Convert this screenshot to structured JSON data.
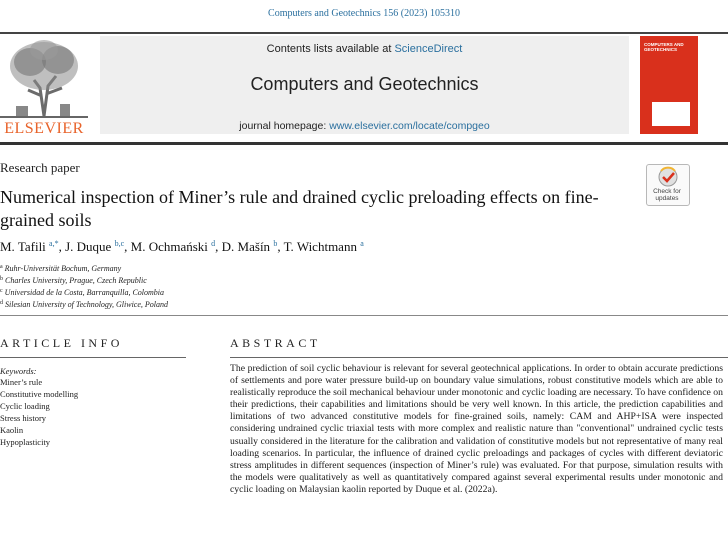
{
  "header": {
    "citation": "Computers and Geotechnics 156 (2023) 105310",
    "publisher_logo_text": "ELSEVIER",
    "contents_prefix": "Contents lists available at ",
    "contents_link": "ScienceDirect",
    "journal_title": "Computers and Geotechnics",
    "homepage_prefix": "journal homepage: ",
    "homepage_link": "www.elsevier.com/locate/compgeo",
    "cover_title": "COMPUTERS AND GEOTECHNICS"
  },
  "article": {
    "type": "Research paper",
    "title": "Numerical inspection of Miner’s rule and drained cyclic preloading effects on fine-grained soils",
    "check_updates_label": "Check for updates",
    "authors": [
      {
        "name": "M. Tafili",
        "sup": "a,*"
      },
      {
        "name": "J. Duque",
        "sup": "b,c"
      },
      {
        "name": "M. Ochmański",
        "sup": "d"
      },
      {
        "name": "D. Mašín",
        "sup": "b"
      },
      {
        "name": "T. Wichtmann",
        "sup": "a"
      }
    ],
    "affiliations": [
      {
        "key": "a",
        "text": "Ruhr-Universität Bochum, Germany"
      },
      {
        "key": "b",
        "text": "Charles University, Prague, Czech Republic"
      },
      {
        "key": "c",
        "text": "Universidad de la Costa, Barranquilla, Colombia"
      },
      {
        "key": "d",
        "text": "Silesian University of Technology, Gliwice, Poland"
      }
    ]
  },
  "article_info": {
    "heading": "ARTICLE INFO",
    "keywords_label": "Keywords:",
    "keywords": [
      "Miner’s rule",
      "Constitutive modelling",
      "Cyclic loading",
      "Stress history",
      "Kaolin",
      "Hypoplasticity"
    ]
  },
  "abstract": {
    "heading": "ABSTRACT",
    "text": "The prediction of soil cyclic behaviour is relevant for several geotechnical applications. In order to obtain accurate predictions of settlements and pore water pressure build-up on boundary value simulations, robust constitutive models which are able to realistically reproduce the soil mechanical behaviour under monotonic and cyclic loading are necessary. To have confidence on their predictions, their capabilities and limitations should be very well known. In this article, the prediction capabilities and limitations of two advanced constitutive models for fine-grained soils, namely: CAM and AHP+ISA were inspected considering undrained cyclic triaxial tests with more complex and realistic nature than \"conventional\" undrained cyclic tests usually considered in the literature for the calibration and validation of constitutive models but not representative of many real loading scenarios. In particular, the influence of drained cyclic preloadings and packages of cycles with different deviatoric stress amplitudes in different sequences (inspection of Miner’s rule) was evaluated. For that purpose, simulation results with the models were qualitatively as well as quantitatively compared against several experimental results under monotonic and cyclic loading on Malaysian kaolin reported by Duque et al. (2022a)."
  },
  "colors": {
    "link": "#2a6f9e",
    "elsevier_orange": "#e8632b",
    "cover_red": "#d9301c"
  },
  "icons": [
    "elsevier-tree-logo",
    "check-for-updates-icon"
  ]
}
